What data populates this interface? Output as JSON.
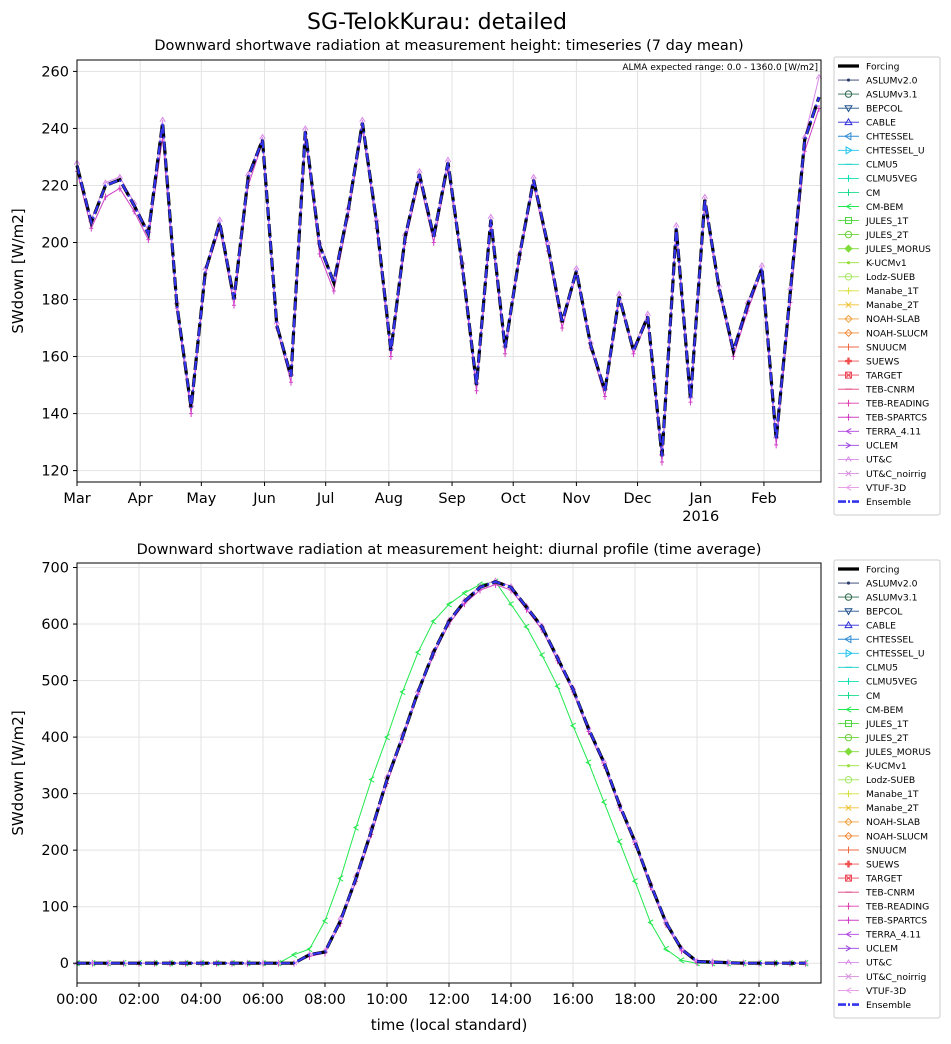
{
  "figure_title": "SG-TelokKurau: detailed",
  "legend_items": [
    {
      "name": "Forcing",
      "color": "#000000",
      "marker": "line",
      "style": "solid-thick"
    },
    {
      "name": "ASLUMv2.0",
      "color": "#2a3a6a",
      "marker": "dot"
    },
    {
      "name": "ASLUMv3.1",
      "color": "#2e6b4e",
      "marker": "circle-open"
    },
    {
      "name": "BEPCOL",
      "color": "#1f4f8a",
      "marker": "tri-down"
    },
    {
      "name": "CABLE",
      "color": "#2a2ad6",
      "marker": "tri-up"
    },
    {
      "name": "CHTESSEL",
      "color": "#2a8ad6",
      "marker": "tri-left"
    },
    {
      "name": "CHTESSEL_U",
      "color": "#22c3ee",
      "marker": "tri-right"
    },
    {
      "name": "CLMU5",
      "color": "#14d0c6",
      "marker": "tick-h"
    },
    {
      "name": "CLMU5VEG",
      "color": "#10e0b0",
      "marker": "tick-v"
    },
    {
      "name": "CM",
      "color": "#18dc8c",
      "marker": "tick-v"
    },
    {
      "name": "CM-BEM",
      "color": "#22e84e",
      "marker": "caret-left"
    },
    {
      "name": "JULES_1T",
      "color": "#4cd63a",
      "marker": "square-open"
    },
    {
      "name": "JULES_2T",
      "color": "#6ad33a",
      "marker": "circle-open"
    },
    {
      "name": "JULES_MORUS",
      "color": "#7fdc3a",
      "marker": "diamond"
    },
    {
      "name": "K-UCMv1",
      "color": "#98e03c",
      "marker": "dot"
    },
    {
      "name": "Lodz-SUEB",
      "color": "#a8e86a",
      "marker": "circle-open"
    },
    {
      "name": "Manabe_1T",
      "color": "#d8e040",
      "marker": "plus"
    },
    {
      "name": "Manabe_2T",
      "color": "#f0c030",
      "marker": "x"
    },
    {
      "name": "NOAH-SLAB",
      "color": "#f0a040",
      "marker": "diamond-open"
    },
    {
      "name": "NOAH-SLUCM",
      "color": "#f08a3a",
      "marker": "diamond-open"
    },
    {
      "name": "SNUUCM",
      "color": "#f06a40",
      "marker": "plus"
    },
    {
      "name": "SUEWS",
      "color": "#f05050",
      "marker": "plus-bold"
    },
    {
      "name": "TARGET",
      "color": "#ec4a5a",
      "marker": "square-x"
    },
    {
      "name": "TEB-CNRM",
      "color": "#e04080",
      "marker": "tick-h"
    },
    {
      "name": "TEB-READING",
      "color": "#e040b0",
      "marker": "tick-v"
    },
    {
      "name": "TEB-SPARTCS",
      "color": "#d040c8",
      "marker": "tick-v"
    },
    {
      "name": "TERRA_4.11",
      "color": "#b040e0",
      "marker": "caret-left"
    },
    {
      "name": "UCLEM",
      "color": "#9a40e0",
      "marker": "caret-right"
    },
    {
      "name": "UT&C",
      "color": "#d888e8",
      "marker": "caret-up"
    },
    {
      "name": "UT&C_noirrig",
      "color": "#d890e0",
      "marker": "x-thin"
    },
    {
      "name": "VTUF-3D",
      "color": "#e8a0e8",
      "marker": "caret-left"
    },
    {
      "name": "Ensemble",
      "color": "#3333ee",
      "marker": "line",
      "style": "dashdot"
    }
  ],
  "chart_data": [
    {
      "type": "line",
      "title": "Downward shortwave radiation at measurement height: timeseries (7 day mean)",
      "ylabel": "SWdown [W/m2]",
      "annotation": "ALMA expected range: 0.0 - 1360.0 [W/m2]",
      "ylim": [
        116,
        264
      ],
      "yticks": [
        120,
        140,
        160,
        180,
        200,
        220,
        240,
        260
      ],
      "x_domain": [
        "2015-03-01",
        "2016-02-29"
      ],
      "xticks": [
        {
          "date": "2015-03-01",
          "label": "Mar"
        },
        {
          "date": "2015-04-01",
          "label": "Apr"
        },
        {
          "date": "2015-05-01",
          "label": "May"
        },
        {
          "date": "2015-06-01",
          "label": "Jun"
        },
        {
          "date": "2015-07-01",
          "label": "Jul"
        },
        {
          "date": "2015-08-01",
          "label": "Aug"
        },
        {
          "date": "2015-09-01",
          "label": "Sep"
        },
        {
          "date": "2015-10-01",
          "label": "Oct"
        },
        {
          "date": "2015-11-01",
          "label": "Nov"
        },
        {
          "date": "2015-12-01",
          "label": "Dec"
        },
        {
          "date": "2016-01-01",
          "label": "Jan",
          "sublabel": "2016"
        },
        {
          "date": "2016-02-01",
          "label": "Feb"
        }
      ],
      "grid": true,
      "dates": [
        "2015-03-01",
        "2015-03-08",
        "2015-03-15",
        "2015-03-22",
        "2015-03-29",
        "2015-04-05",
        "2015-04-12",
        "2015-04-19",
        "2015-04-26",
        "2015-05-03",
        "2015-05-10",
        "2015-05-17",
        "2015-05-24",
        "2015-05-31",
        "2015-06-07",
        "2015-06-14",
        "2015-06-21",
        "2015-06-28",
        "2015-07-05",
        "2015-07-12",
        "2015-07-19",
        "2015-07-26",
        "2015-08-02",
        "2015-08-09",
        "2015-08-16",
        "2015-08-23",
        "2015-08-30",
        "2015-09-06",
        "2015-09-13",
        "2015-09-20",
        "2015-09-27",
        "2015-10-04",
        "2015-10-11",
        "2015-10-18",
        "2015-10-25",
        "2015-11-01",
        "2015-11-08",
        "2015-11-15",
        "2015-11-22",
        "2015-11-29",
        "2015-12-06",
        "2015-12-13",
        "2015-12-20",
        "2015-12-27",
        "2016-01-03",
        "2016-01-10",
        "2016-01-17",
        "2016-01-24",
        "2016-01-31",
        "2016-02-07",
        "2016-02-14",
        "2016-02-21",
        "2016-02-28"
      ],
      "series": [
        {
          "name": "Forcing",
          "values": [
            227,
            207,
            220,
            222,
            213,
            203,
            242,
            178,
            142,
            190,
            207,
            180,
            223,
            236,
            171,
            153,
            239,
            199,
            186,
            211,
            242,
            207,
            162,
            202,
            224,
            202,
            228,
            192,
            150,
            208,
            163,
            195,
            222,
            199,
            172,
            190,
            164,
            148,
            181,
            162,
            174,
            125,
            205,
            145,
            215,
            184,
            162,
            178,
            191,
            131,
            183,
            236,
            251
          ]
        },
        {
          "name": "Ensemble",
          "values": [
            227,
            207,
            220,
            222,
            213,
            203,
            242,
            178,
            142,
            190,
            207,
            180,
            223,
            236,
            171,
            153,
            239,
            199,
            186,
            211,
            242,
            207,
            162,
            202,
            224,
            202,
            228,
            192,
            150,
            208,
            163,
            195,
            222,
            199,
            172,
            190,
            164,
            148,
            181,
            162,
            174,
            125,
            205,
            145,
            215,
            184,
            162,
            178,
            191,
            131,
            183,
            236,
            251
          ]
        },
        {
          "name": "TEB-SPARTCS",
          "values": [
            225,
            205,
            216,
            219,
            211,
            201,
            237,
            177,
            140,
            189,
            205,
            178,
            220,
            235,
            170,
            151,
            237,
            196,
            183,
            209,
            240,
            205,
            160,
            200,
            222,
            200,
            226,
            191,
            148,
            206,
            161,
            194,
            220,
            197,
            170,
            189,
            163,
            146,
            180,
            161,
            173,
            123,
            204,
            144,
            213,
            183,
            160,
            176,
            190,
            129,
            179,
            232,
            247
          ]
        },
        {
          "name": "UT&C",
          "values": [
            228,
            208,
            221,
            223,
            214,
            204,
            243,
            179,
            143,
            191,
            208,
            181,
            224,
            237,
            172,
            154,
            240,
            200,
            187,
            212,
            243,
            208,
            163,
            203,
            225,
            203,
            229,
            193,
            151,
            209,
            164,
            196,
            223,
            200,
            173,
            191,
            165,
            149,
            182,
            163,
            175,
            126,
            206,
            146,
            216,
            185,
            163,
            179,
            192,
            132,
            184,
            237,
            258
          ]
        }
      ]
    },
    {
      "type": "line",
      "title": "Downward shortwave radiation at measurement height: diurnal profile (time average)",
      "xlabel": "time (local standard)",
      "ylabel": "SWdown [W/m2]",
      "ylim": [
        -35,
        708
      ],
      "yticks": [
        0,
        100,
        200,
        300,
        400,
        500,
        600,
        700
      ],
      "xlim": [
        0,
        24
      ],
      "xticks": [
        {
          "hour": 0,
          "label": "00:00"
        },
        {
          "hour": 2,
          "label": "02:00"
        },
        {
          "hour": 4,
          "label": "04:00"
        },
        {
          "hour": 6,
          "label": "06:00"
        },
        {
          "hour": 8,
          "label": "08:00"
        },
        {
          "hour": 10,
          "label": "10:00"
        },
        {
          "hour": 12,
          "label": "12:00"
        },
        {
          "hour": 14,
          "label": "14:00"
        },
        {
          "hour": 16,
          "label": "16:00"
        },
        {
          "hour": 18,
          "label": "18:00"
        },
        {
          "hour": 20,
          "label": "20:00"
        },
        {
          "hour": 22,
          "label": "22:00"
        }
      ],
      "grid": true,
      "x": [
        0,
        0.5,
        1,
        1.5,
        2,
        2.5,
        3,
        3.5,
        4,
        4.5,
        5,
        5.5,
        6,
        6.5,
        7,
        7.5,
        8,
        8.5,
        9,
        9.5,
        10,
        10.5,
        11,
        11.5,
        12,
        12.5,
        13,
        13.5,
        14,
        14.5,
        15,
        15.5,
        16,
        16.5,
        17,
        17.5,
        18,
        18.5,
        19,
        19.5,
        20,
        20.5,
        21,
        21.5,
        22,
        22.5,
        23,
        23.5
      ],
      "series": [
        {
          "name": "Forcing",
          "values": [
            0,
            0,
            0,
            0,
            0,
            0,
            0,
            0,
            0,
            0,
            0,
            0,
            0,
            0,
            0,
            15,
            20,
            75,
            150,
            235,
            325,
            400,
            480,
            550,
            605,
            640,
            665,
            675,
            665,
            630,
            595,
            540,
            485,
            415,
            355,
            280,
            215,
            140,
            72,
            25,
            3,
            2,
            1,
            0,
            0,
            0,
            0,
            0
          ]
        },
        {
          "name": "Ensemble",
          "values": [
            0,
            0,
            0,
            0,
            0,
            0,
            0,
            0,
            0,
            0,
            0,
            0,
            0,
            0,
            0,
            15,
            20,
            75,
            150,
            235,
            325,
            400,
            480,
            550,
            605,
            640,
            665,
            675,
            665,
            630,
            595,
            540,
            485,
            415,
            355,
            280,
            215,
            140,
            72,
            25,
            3,
            2,
            1,
            0,
            0,
            0,
            0,
            0
          ]
        },
        {
          "name": "CM-BEM",
          "values": [
            0,
            0,
            0,
            0,
            0,
            0,
            0,
            0,
            0,
            0,
            0,
            0,
            0,
            0,
            15,
            25,
            75,
            150,
            240,
            325,
            400,
            480,
            550,
            605,
            635,
            655,
            670,
            675,
            635,
            595,
            545,
            490,
            420,
            355,
            285,
            215,
            145,
            72,
            25,
            5,
            0,
            0,
            0,
            0,
            0,
            0,
            0,
            0
          ]
        },
        {
          "name": "TEB-SPARTCS",
          "values": [
            0,
            0,
            0,
            0,
            0,
            0,
            0,
            0,
            0,
            0,
            0,
            0,
            0,
            0,
            0,
            12,
            18,
            70,
            145,
            228,
            318,
            395,
            476,
            545,
            600,
            636,
            660,
            670,
            660,
            626,
            590,
            535,
            480,
            410,
            350,
            275,
            210,
            135,
            68,
            22,
            1,
            0,
            0,
            0,
            0,
            0,
            0,
            0
          ]
        },
        {
          "name": "UT&C",
          "values": [
            0,
            0,
            0,
            0,
            0,
            0,
            0,
            0,
            0,
            0,
            0,
            0,
            0,
            0,
            0,
            16,
            22,
            80,
            155,
            240,
            330,
            405,
            482,
            552,
            607,
            642,
            667,
            677,
            667,
            632,
            597,
            542,
            487,
            417,
            357,
            282,
            217,
            142,
            74,
            27,
            4,
            3,
            2,
            1,
            0,
            0,
            0,
            0
          ]
        }
      ]
    }
  ]
}
